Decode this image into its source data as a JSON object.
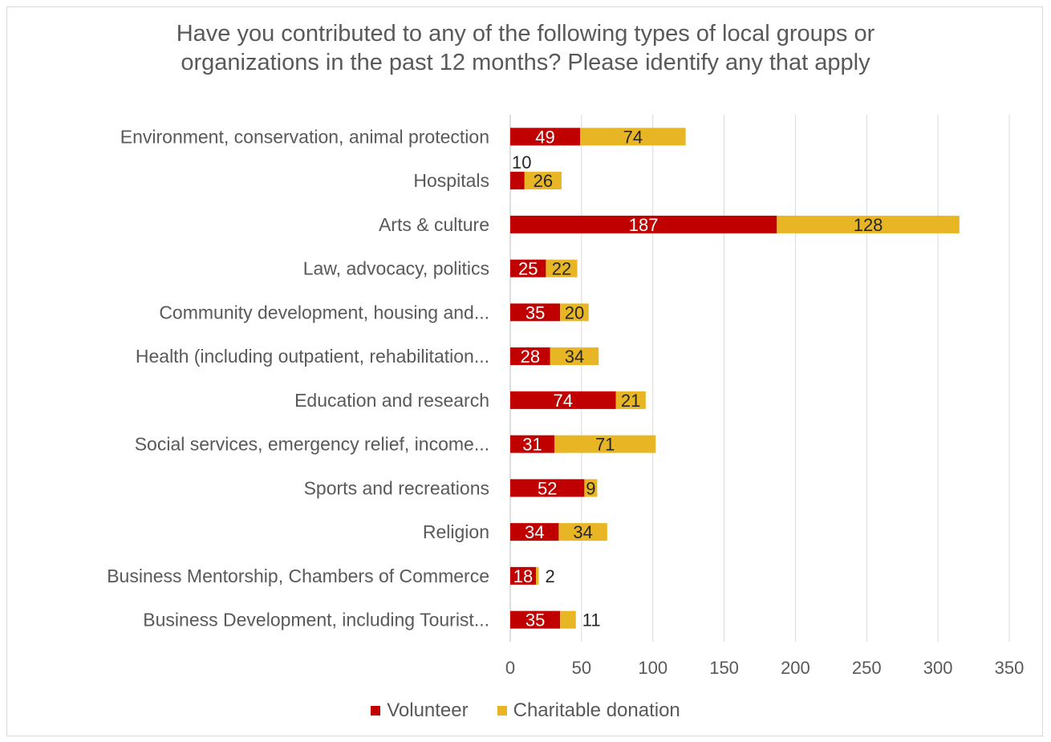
{
  "chart_data": {
    "type": "bar",
    "orientation": "horizontal",
    "stacked": true,
    "title": "Have you contributed to any of the following types of local groups or\norganizations in the past 12 months? Please identify any that apply",
    "categories": [
      "Environment, conservation, animal protection",
      "Hospitals",
      "Arts & culture",
      "Law, advocacy, politics",
      "Community development, housing and...",
      "Health (including outpatient, rehabilitation...",
      "Education and research",
      "Social services, emergency relief, income...",
      "Sports and recreations",
      "Religion",
      "Business Mentorship, Chambers of Commerce",
      "Business Development, including Tourist..."
    ],
    "series": [
      {
        "name": "Volunteer",
        "color": "#c00000",
        "values": [
          49,
          10,
          187,
          25,
          35,
          28,
          74,
          31,
          52,
          34,
          18,
          35
        ]
      },
      {
        "name": "Charitable donation",
        "color": "#e8b625",
        "values": [
          74,
          26,
          128,
          22,
          20,
          34,
          21,
          71,
          9,
          34,
          2,
          11
        ]
      }
    ],
    "xlim": [
      0,
      350
    ],
    "xticks": [
      "0",
      "50",
      "100",
      "150",
      "200",
      "250",
      "300",
      "350"
    ],
    "grid": true,
    "legend_position": "bottom"
  }
}
